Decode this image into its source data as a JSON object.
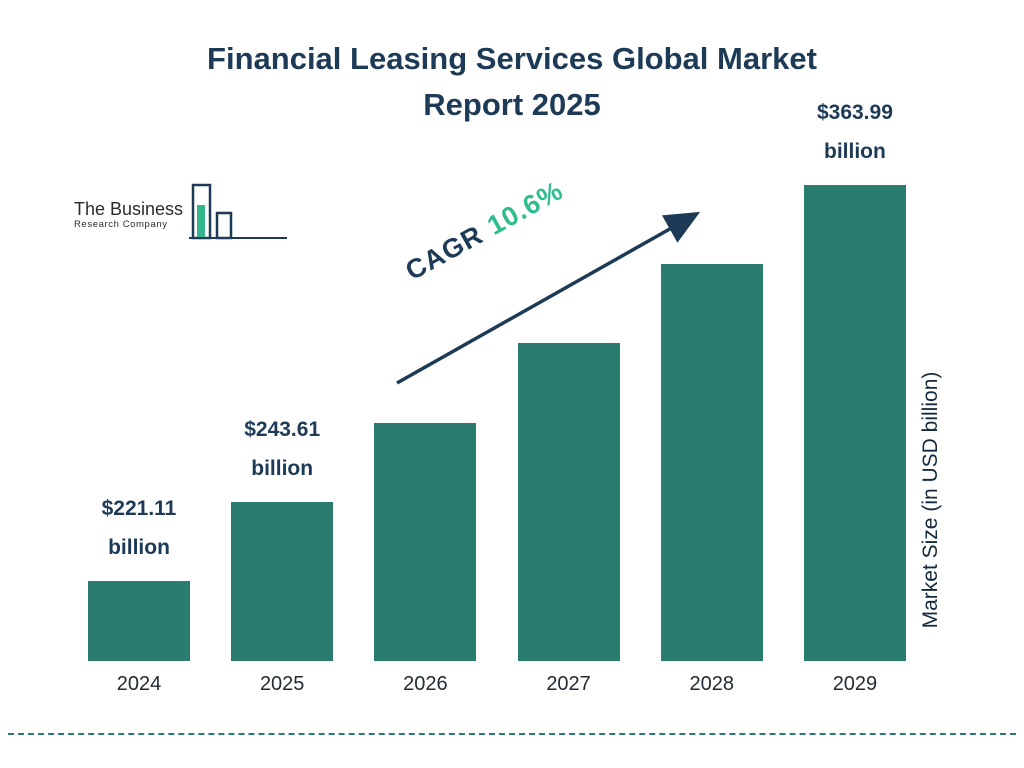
{
  "title": {
    "line1": "Financial Leasing Services Global Market",
    "line2": "Report 2025"
  },
  "logo": {
    "line1": "The Business",
    "line2": "Research Company"
  },
  "colors": {
    "bar": "#2a7c6e",
    "navy": "#1d3a56",
    "green": "#2fbd8f",
    "tick": "#222b33"
  },
  "chart_data": {
    "type": "bar",
    "title": "Financial Leasing Services Global Market Report 2025",
    "categories": [
      "2024",
      "2025",
      "2026",
      "2027",
      "2028",
      "2029"
    ],
    "values": [
      221.11,
      243.61,
      269.43,
      297.99,
      329.58,
      363.99
    ],
    "unit": "USD billion",
    "xlabel": "",
    "ylabel": "Market Size (in USD billion)",
    "grid": false,
    "axis_lines": "hidden",
    "legend": "none",
    "visible_value_labels": [
      {
        "index": 0,
        "line1": "$221.11",
        "line2": "billion"
      },
      {
        "index": 1,
        "line1": "$243.61",
        "line2": "billion"
      },
      {
        "index": 5,
        "line1": "$363.99",
        "line2": "billion"
      }
    ],
    "cagr": {
      "label": "CAGR",
      "value": "10.6%"
    }
  }
}
